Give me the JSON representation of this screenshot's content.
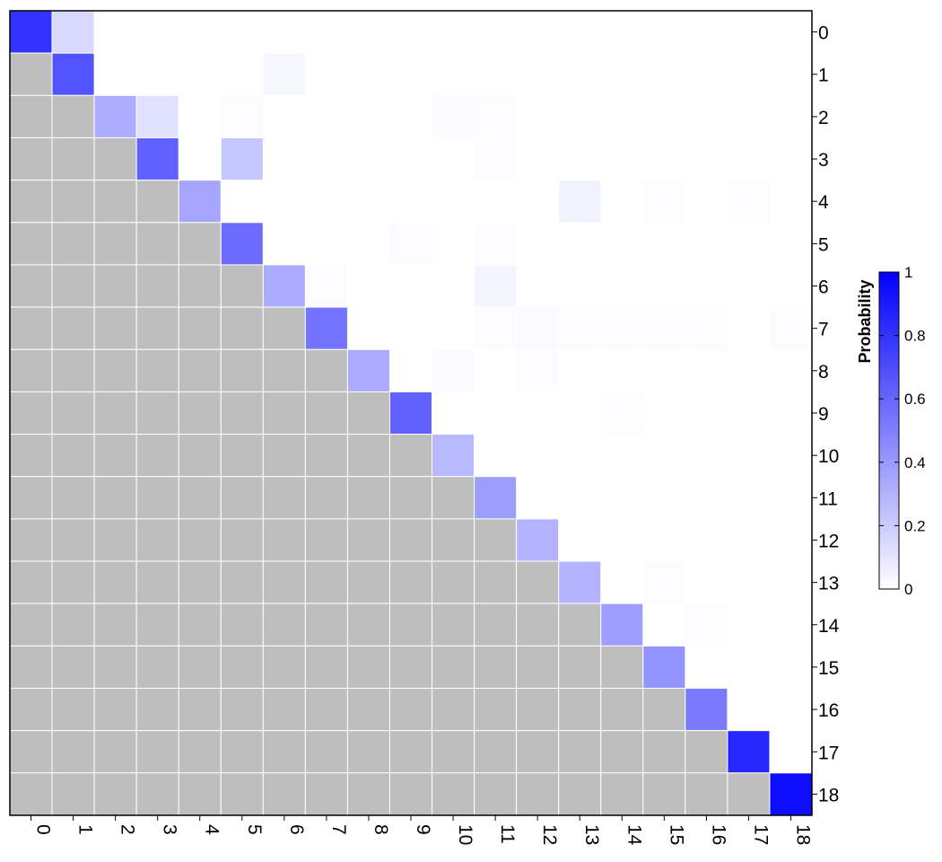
{
  "chart_data": {
    "type": "heatmap",
    "x_categories": [
      "0",
      "1",
      "2",
      "3",
      "4",
      "5",
      "6",
      "7",
      "8",
      "9",
      "10",
      "11",
      "12",
      "13",
      "14",
      "15",
      "16",
      "17",
      "18"
    ],
    "y_categories": [
      "0",
      "1",
      "2",
      "3",
      "4",
      "5",
      "6",
      "7",
      "8",
      "9",
      "10",
      "11",
      "12",
      "13",
      "14",
      "15",
      "16",
      "17",
      "18"
    ],
    "lower_triangle": "masked (grey)",
    "values": [
      [
        0.8,
        0.15,
        0,
        0,
        0,
        0,
        0,
        0,
        0,
        0,
        0,
        0,
        0,
        0,
        0,
        0,
        0,
        0,
        0
      ],
      [
        null,
        0.68,
        0,
        0,
        0,
        0,
        0.03,
        0,
        0,
        0,
        0,
        0,
        0,
        0,
        0,
        0,
        0,
        0,
        0
      ],
      [
        null,
        null,
        0.32,
        0.12,
        0,
        0.01,
        0,
        0,
        0,
        0,
        0.02,
        0.01,
        0,
        0,
        0,
        0,
        0,
        0,
        0
      ],
      [
        null,
        null,
        null,
        0.62,
        0,
        0.22,
        0,
        0,
        0,
        0,
        0,
        0.01,
        0,
        0,
        0,
        0,
        0,
        0,
        0
      ],
      [
        null,
        null,
        null,
        null,
        0.35,
        0,
        0,
        0,
        0,
        0,
        0,
        0,
        0,
        0.05,
        0,
        0.01,
        0,
        0.01,
        0
      ],
      [
        null,
        null,
        null,
        null,
        null,
        0.58,
        0,
        0,
        0,
        0.01,
        0,
        0.01,
        0,
        0,
        0,
        0,
        0,
        0,
        0
      ],
      [
        null,
        null,
        null,
        null,
        null,
        null,
        0.33,
        0.01,
        0,
        0,
        0,
        0.04,
        0,
        0,
        0,
        0,
        0,
        0,
        0
      ],
      [
        null,
        null,
        null,
        null,
        null,
        null,
        null,
        0.55,
        0,
        0,
        0,
        0.01,
        0.02,
        0.01,
        0.01,
        0.01,
        0.01,
        0,
        0.01
      ],
      [
        null,
        null,
        null,
        null,
        null,
        null,
        null,
        null,
        0.33,
        0,
        0.02,
        0,
        0.01,
        0,
        0,
        0,
        0,
        0,
        0
      ],
      [
        null,
        null,
        null,
        null,
        null,
        null,
        null,
        null,
        null,
        0.62,
        0,
        0,
        0,
        0,
        0.01,
        0,
        0,
        0,
        0
      ],
      [
        null,
        null,
        null,
        null,
        null,
        null,
        null,
        null,
        null,
        null,
        0.28,
        0,
        0,
        0,
        0,
        0,
        0,
        0,
        0
      ],
      [
        null,
        null,
        null,
        null,
        null,
        null,
        null,
        null,
        null,
        null,
        null,
        0.38,
        0,
        0,
        0,
        0,
        0,
        0,
        0
      ],
      [
        null,
        null,
        null,
        null,
        null,
        null,
        null,
        null,
        null,
        null,
        null,
        null,
        0.3,
        0,
        0,
        0,
        0,
        0,
        0
      ],
      [
        null,
        null,
        null,
        null,
        null,
        null,
        null,
        null,
        null,
        null,
        null,
        null,
        null,
        0.3,
        0,
        0.01,
        0,
        0,
        0
      ],
      [
        null,
        null,
        null,
        null,
        null,
        null,
        null,
        null,
        null,
        null,
        null,
        null,
        null,
        null,
        0.38,
        0,
        0.01,
        0,
        0
      ],
      [
        null,
        null,
        null,
        null,
        null,
        null,
        null,
        null,
        null,
        null,
        null,
        null,
        null,
        null,
        null,
        0.42,
        0,
        0,
        0
      ],
      [
        null,
        null,
        null,
        null,
        null,
        null,
        null,
        null,
        null,
        null,
        null,
        null,
        null,
        null,
        null,
        null,
        0.52,
        0,
        0
      ],
      [
        null,
        null,
        null,
        null,
        null,
        null,
        null,
        null,
        null,
        null,
        null,
        null,
        null,
        null,
        null,
        null,
        null,
        0.85,
        0
      ],
      [
        null,
        null,
        null,
        null,
        null,
        null,
        null,
        null,
        null,
        null,
        null,
        null,
        null,
        null,
        null,
        null,
        null,
        null,
        0.95
      ]
    ],
    "colorbar": {
      "title": "Probability",
      "range": [
        0,
        1
      ],
      "ticks": [
        "0",
        "0.2",
        "0.4",
        "0.6",
        "0.8",
        "1"
      ],
      "color_low": "#ffffff",
      "color_high": "#0000ff"
    },
    "mask_color": "#bebebe",
    "grid": true
  }
}
